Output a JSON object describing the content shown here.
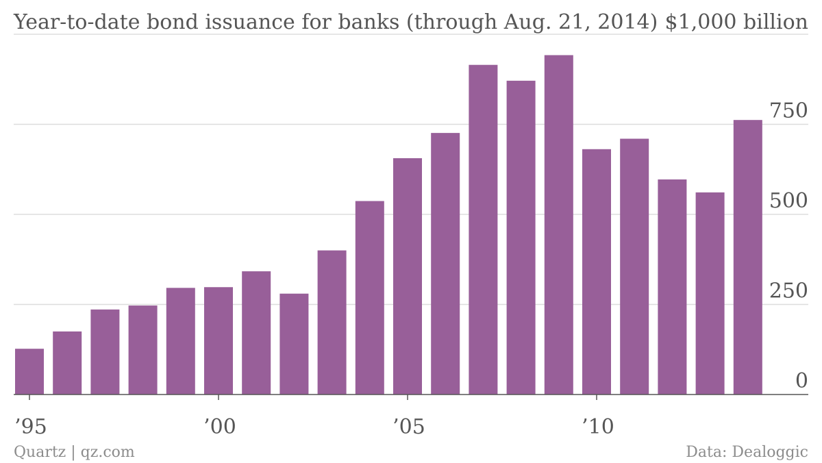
{
  "chart_data": {
    "type": "bar",
    "title": "Year-to-date bond issuance for banks (through Aug. 21, 2014)",
    "ylabel": "",
    "xlabel": "",
    "ylim": [
      0,
      1000
    ],
    "y_ticks": [
      0,
      250,
      500,
      750
    ],
    "y_top_label": "$1,000 billion",
    "x_ticks": [
      {
        "year": 1995,
        "label": "’95"
      },
      {
        "year": 2000,
        "label": "’00"
      },
      {
        "year": 2005,
        "label": "’05"
      },
      {
        "year": 2010,
        "label": "’10"
      }
    ],
    "categories": [
      1995,
      1996,
      1997,
      1998,
      1999,
      2000,
      2001,
      2002,
      2003,
      2004,
      2005,
      2006,
      2007,
      2008,
      2009,
      2010,
      2011,
      2012,
      2013,
      2014
    ],
    "values": [
      127,
      175,
      236,
      247,
      296,
      298,
      342,
      280,
      400,
      537,
      656,
      726,
      915,
      871,
      942,
      681,
      710,
      597,
      561,
      762
    ],
    "grid": true,
    "color": "#985f99"
  },
  "footer": {
    "source_left": "Quartz | qz.com",
    "source_right": "Data: Dealoggic"
  }
}
